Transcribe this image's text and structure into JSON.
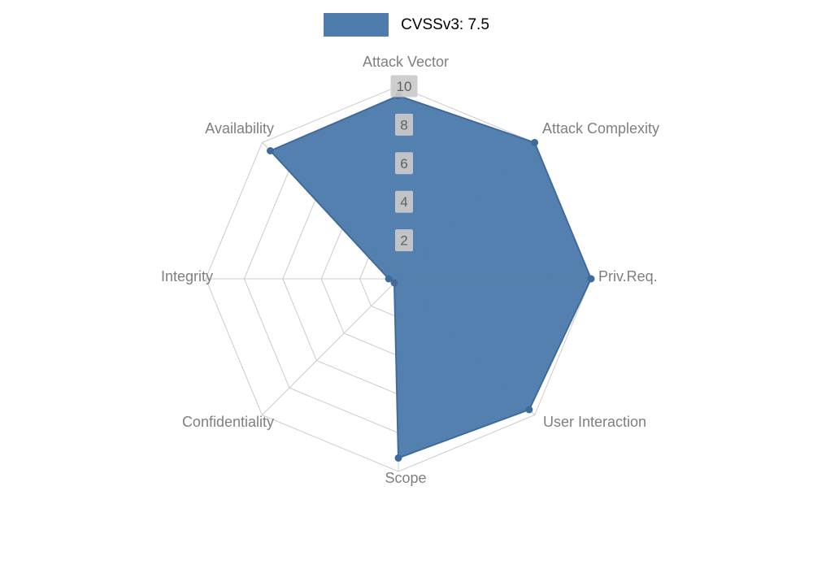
{
  "chart_data": {
    "type": "radar",
    "title": "",
    "categories": [
      "Attack Vector",
      "Attack Complexity",
      "Priv.Req.",
      "User Interaction",
      "Scope",
      "Confidentiality",
      "Integrity",
      "Availability"
    ],
    "series": [
      {
        "name": "CVSSv3: 7.5",
        "values": [
          9.5,
          10,
          10,
          9.6,
          9.3,
          0.3,
          0.5,
          9.4
        ],
        "fill_color": "#4e7cac",
        "line_color": "#3f6b9b"
      }
    ],
    "rlim": [
      0,
      10
    ],
    "ticks": [
      2,
      4,
      6,
      8,
      10
    ],
    "grid": true,
    "grid_shape": "polygon",
    "grid_color": "#cccccc",
    "axis_label_color": "#7f7f7f",
    "tick_label_color": "#5f5f5f",
    "tick_box_color": "#cacaca",
    "legend_position": "top-center"
  },
  "legend": {
    "label": "CVSSv3: 7.5"
  }
}
